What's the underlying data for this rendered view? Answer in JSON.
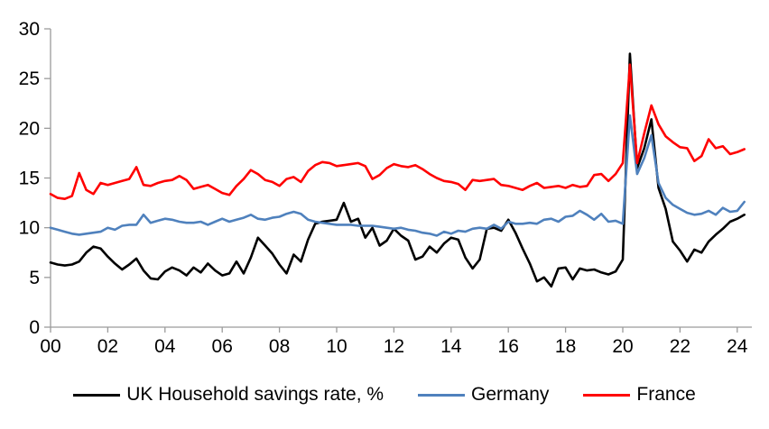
{
  "chart_data": {
    "type": "line",
    "title": "",
    "x_axis": {
      "start": 2000,
      "step": 0.25,
      "tick_years": [
        2000,
        2002,
        2004,
        2006,
        2008,
        2010,
        2012,
        2014,
        2016,
        2018,
        2020,
        2022,
        2024
      ],
      "tick_labels": [
        "00",
        "02",
        "04",
        "06",
        "08",
        "10",
        "12",
        "14",
        "16",
        "18",
        "20",
        "22",
        "24"
      ],
      "range": [
        2000,
        2024.5
      ]
    },
    "y_axis": {
      "ticks": [
        0,
        5,
        10,
        15,
        20,
        25,
        30
      ],
      "tick_labels": [
        "0",
        "5",
        "10",
        "15",
        "20",
        "25",
        "30"
      ],
      "range": [
        0,
        30
      ]
    },
    "grid": false,
    "legend_position": "bottom",
    "axis_color": "#9b9b9b",
    "series": [
      {
        "name": "UK Household savings rate, %",
        "color": "#000000",
        "values": [
          6.5,
          6.3,
          6.2,
          6.3,
          6.6,
          7.5,
          8.1,
          7.9,
          7.1,
          6.4,
          5.8,
          6.3,
          6.9,
          5.7,
          4.9,
          4.8,
          5.6,
          6.0,
          5.7,
          5.2,
          6.0,
          5.5,
          6.4,
          5.7,
          5.2,
          5.4,
          6.6,
          5.4,
          7.0,
          9.0,
          8.2,
          7.4,
          6.3,
          5.4,
          7.3,
          6.6,
          8.8,
          10.4,
          10.6,
          10.7,
          10.8,
          12.5,
          10.6,
          10.9,
          9.0,
          10.0,
          8.2,
          8.7,
          9.9,
          9.2,
          8.7,
          6.8,
          7.1,
          8.1,
          7.5,
          8.4,
          9.0,
          8.8,
          7.0,
          5.9,
          6.8,
          9.9,
          10.0,
          9.7,
          10.8,
          9.5,
          7.9,
          6.4,
          4.6,
          5.0,
          4.1,
          5.9,
          6.0,
          4.8,
          5.9,
          5.7,
          5.8,
          5.5,
          5.3,
          5.6,
          6.8,
          27.5,
          16.0,
          18.0,
          20.9,
          14.0,
          11.9,
          8.6,
          7.7,
          6.6,
          7.8,
          7.5,
          8.6,
          9.3,
          9.9,
          10.6,
          10.9,
          11.3
        ]
      },
      {
        "name": "Germany",
        "color": "#4f81bd",
        "values": [
          10.0,
          9.8,
          9.6,
          9.4,
          9.3,
          9.4,
          9.5,
          9.6,
          10.0,
          9.8,
          10.2,
          10.3,
          10.3,
          11.3,
          10.5,
          10.7,
          10.9,
          10.8,
          10.6,
          10.5,
          10.5,
          10.6,
          10.3,
          10.6,
          10.9,
          10.6,
          10.8,
          11.0,
          11.3,
          10.9,
          10.8,
          11.0,
          11.1,
          11.4,
          11.6,
          11.4,
          10.8,
          10.6,
          10.5,
          10.4,
          10.3,
          10.3,
          10.3,
          10.2,
          10.2,
          10.2,
          10.1,
          10.0,
          9.9,
          10.0,
          9.8,
          9.7,
          9.5,
          9.4,
          9.2,
          9.6,
          9.4,
          9.7,
          9.6,
          9.9,
          10.0,
          9.9,
          10.3,
          9.9,
          10.6,
          10.4,
          10.4,
          10.5,
          10.4,
          10.8,
          10.9,
          10.6,
          11.1,
          11.2,
          11.7,
          11.3,
          10.8,
          11.4,
          10.6,
          10.7,
          10.4,
          21.3,
          15.4,
          17.0,
          19.3,
          14.5,
          13.0,
          12.3,
          11.9,
          11.5,
          11.3,
          11.4,
          11.7,
          11.3,
          12.0,
          11.6,
          11.7,
          12.6
        ]
      },
      {
        "name": "France",
        "color": "#ff0000",
        "values": [
          13.4,
          13.0,
          12.9,
          13.2,
          15.5,
          13.8,
          13.4,
          14.5,
          14.3,
          14.5,
          14.7,
          14.9,
          16.1,
          14.3,
          14.2,
          14.5,
          14.7,
          14.8,
          15.2,
          14.8,
          13.9,
          14.1,
          14.3,
          13.9,
          13.5,
          13.3,
          14.2,
          14.9,
          15.8,
          15.4,
          14.8,
          14.6,
          14.2,
          14.9,
          15.1,
          14.6,
          15.7,
          16.3,
          16.6,
          16.5,
          16.2,
          16.3,
          16.4,
          16.5,
          16.2,
          14.9,
          15.3,
          16.0,
          16.4,
          16.2,
          16.1,
          16.3,
          15.9,
          15.4,
          15.0,
          14.7,
          14.6,
          14.4,
          13.8,
          14.8,
          14.7,
          14.8,
          14.9,
          14.3,
          14.2,
          14.0,
          13.8,
          14.2,
          14.5,
          14.0,
          14.1,
          14.2,
          14.0,
          14.3,
          14.1,
          14.2,
          15.3,
          15.4,
          14.7,
          15.4,
          16.5,
          26.4,
          16.5,
          19.5,
          22.3,
          20.4,
          19.2,
          18.6,
          18.1,
          18.0,
          16.7,
          17.2,
          18.9,
          18.0,
          18.2,
          17.4,
          17.6,
          17.9
        ]
      }
    ]
  }
}
